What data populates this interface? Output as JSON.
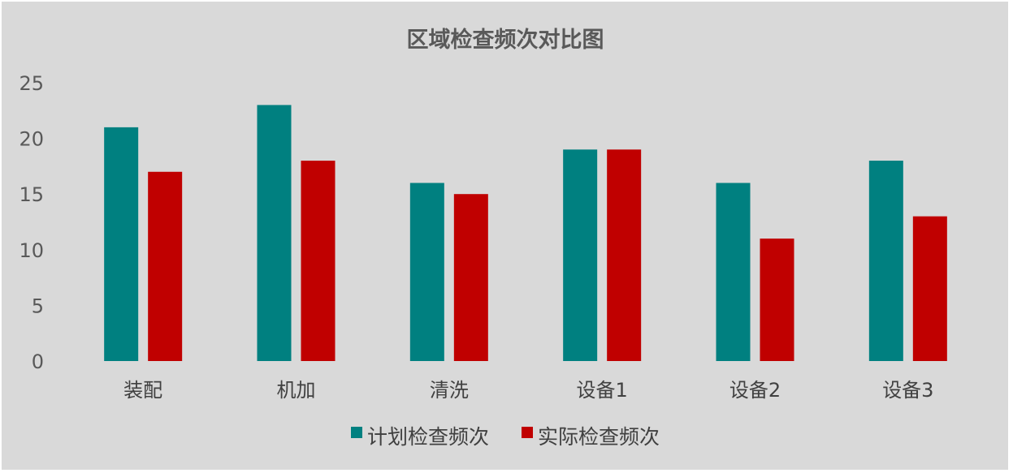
{
  "chart_data": {
    "type": "bar",
    "title": "区域检查频次对比图",
    "xlabel": "",
    "ylabel": "",
    "categories": [
      "装配",
      "机加",
      "清洗",
      "设备1",
      "设备2",
      "设备3"
    ],
    "series": [
      {
        "name": "计划检查频次",
        "color": "#008080",
        "values": [
          21,
          23,
          16,
          19,
          16,
          18
        ]
      },
      {
        "name": "实际检查频次",
        "color": "#c00000",
        "values": [
          17,
          18,
          15,
          19,
          11,
          13
        ]
      }
    ],
    "ylim": [
      0,
      25
    ],
    "yticks": [
      0,
      5,
      10,
      15,
      20,
      25
    ],
    "grid": false,
    "legend_position": "bottom",
    "background": "#d9d9d9"
  }
}
